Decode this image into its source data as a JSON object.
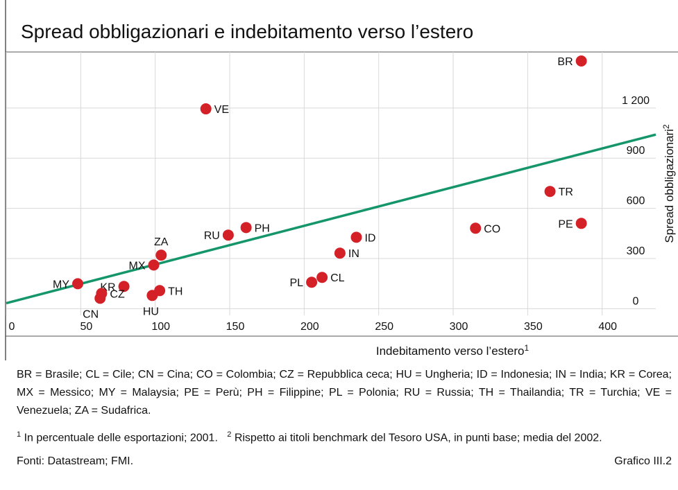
{
  "chart_data": {
    "type": "scatter",
    "title": "Spread obbligazionari e indebitamento verso l’estero",
    "x_label": "Indebitamento verso l’estero",
    "x_label_sup": "1",
    "y_label": "Spread obbligazionari",
    "y_label_sup": "2",
    "labels": [
      "BR",
      "VE",
      "TR",
      "PE",
      "CO",
      "PH",
      "RU",
      "ID",
      "IN",
      "ZA",
      "MX",
      "CL",
      "PL",
      "MY",
      "KR",
      "TH",
      "HU",
      "CZ",
      "CN"
    ],
    "x": [
      386,
      134,
      365,
      386,
      315,
      161,
      149,
      235,
      224,
      104,
      99,
      212,
      205,
      48,
      79,
      103,
      98,
      64,
      63
    ],
    "values": [
      1481,
      1195,
      701,
      510,
      481,
      485,
      440,
      427,
      332,
      320,
      261,
      187,
      158,
      149,
      133,
      108,
      79,
      91,
      62
    ],
    "color": "#d42027",
    "trendline": {
      "x": [
        0,
        436
      ],
      "y": [
        33,
        1041
      ],
      "color": "#14966a"
    },
    "xlim": [
      0,
      436
    ],
    "ylim": [
      -40,
      1535
    ],
    "xticks": [
      0,
      50,
      100,
      150,
      200,
      250,
      300,
      350,
      400
    ],
    "yticks": [
      0,
      300,
      600,
      900,
      {
        "value": 1200,
        "label": "1 200"
      }
    ],
    "grid": true,
    "legend_text": "BR = Brasile; CL = Cile; CN = Cina; CO = Colombia; CZ = Repubblica ceca; HU = Ungheria; ID = Indonesia; IN = India; KR = Corea; MX = Messico; MY = Malaysia; PE = Perù; PH = Filippine; PL = Polonia; RU = Russia; TH = Thailandia; TR = Turchia; VE = Venezuela; ZA = Sudafrica.",
    "note1_num": "1",
    "note1": "In percentuale delle esportazioni; 2001.",
    "note2_num": "2",
    "note2": "Rispetto ai titoli benchmark del Tesoro USA, in punti base; media del 2002.",
    "source": "Fonti: Datastream; FMI.",
    "chart_id": "Grafico III.2"
  }
}
